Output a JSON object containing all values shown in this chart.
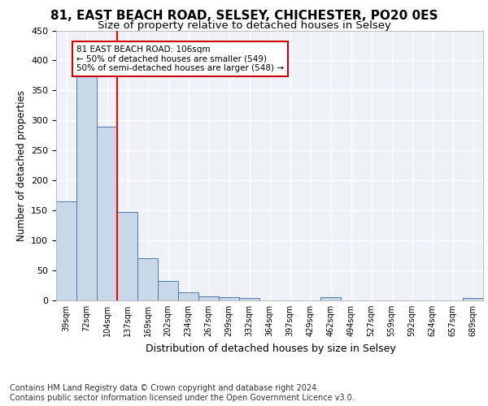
{
  "title1": "81, EAST BEACH ROAD, SELSEY, CHICHESTER, PO20 0ES",
  "title2": "Size of property relative to detached houses in Selsey",
  "xlabel": "Distribution of detached houses by size in Selsey",
  "ylabel": "Number of detached properties",
  "categories": [
    "39sqm",
    "72sqm",
    "104sqm",
    "137sqm",
    "169sqm",
    "202sqm",
    "234sqm",
    "267sqm",
    "299sqm",
    "332sqm",
    "364sqm",
    "397sqm",
    "429sqm",
    "462sqm",
    "494sqm",
    "527sqm",
    "559sqm",
    "592sqm",
    "624sqm",
    "657sqm",
    "689sqm"
  ],
  "values": [
    165,
    375,
    290,
    148,
    70,
    33,
    13,
    7,
    6,
    4,
    0,
    0,
    0,
    5,
    0,
    0,
    0,
    0,
    0,
    0,
    4
  ],
  "bar_color": "#c8d8e8",
  "bar_edge_color": "#4a7aad",
  "red_line_index": 2,
  "annotation_text": "81 EAST BEACH ROAD: 106sqm\n← 50% of detached houses are smaller (549)\n50% of semi-detached houses are larger (548) →",
  "annotation_box_color": "#ffffff",
  "annotation_box_edge_color": "#cc0000",
  "ylim": [
    0,
    450
  ],
  "yticks": [
    0,
    50,
    100,
    150,
    200,
    250,
    300,
    350,
    400,
    450
  ],
  "footer": "Contains HM Land Registry data © Crown copyright and database right 2024.\nContains public sector information licensed under the Open Government Licence v3.0.",
  "bg_color": "#eef2f7",
  "grid_color": "#ffffff",
  "title1_fontsize": 11,
  "title2_fontsize": 9.5,
  "ylabel_fontsize": 8.5,
  "xlabel_fontsize": 9,
  "tick_fontsize": 7,
  "ytick_fontsize": 8,
  "footer_fontsize": 7,
  "annot_fontsize": 7.5
}
